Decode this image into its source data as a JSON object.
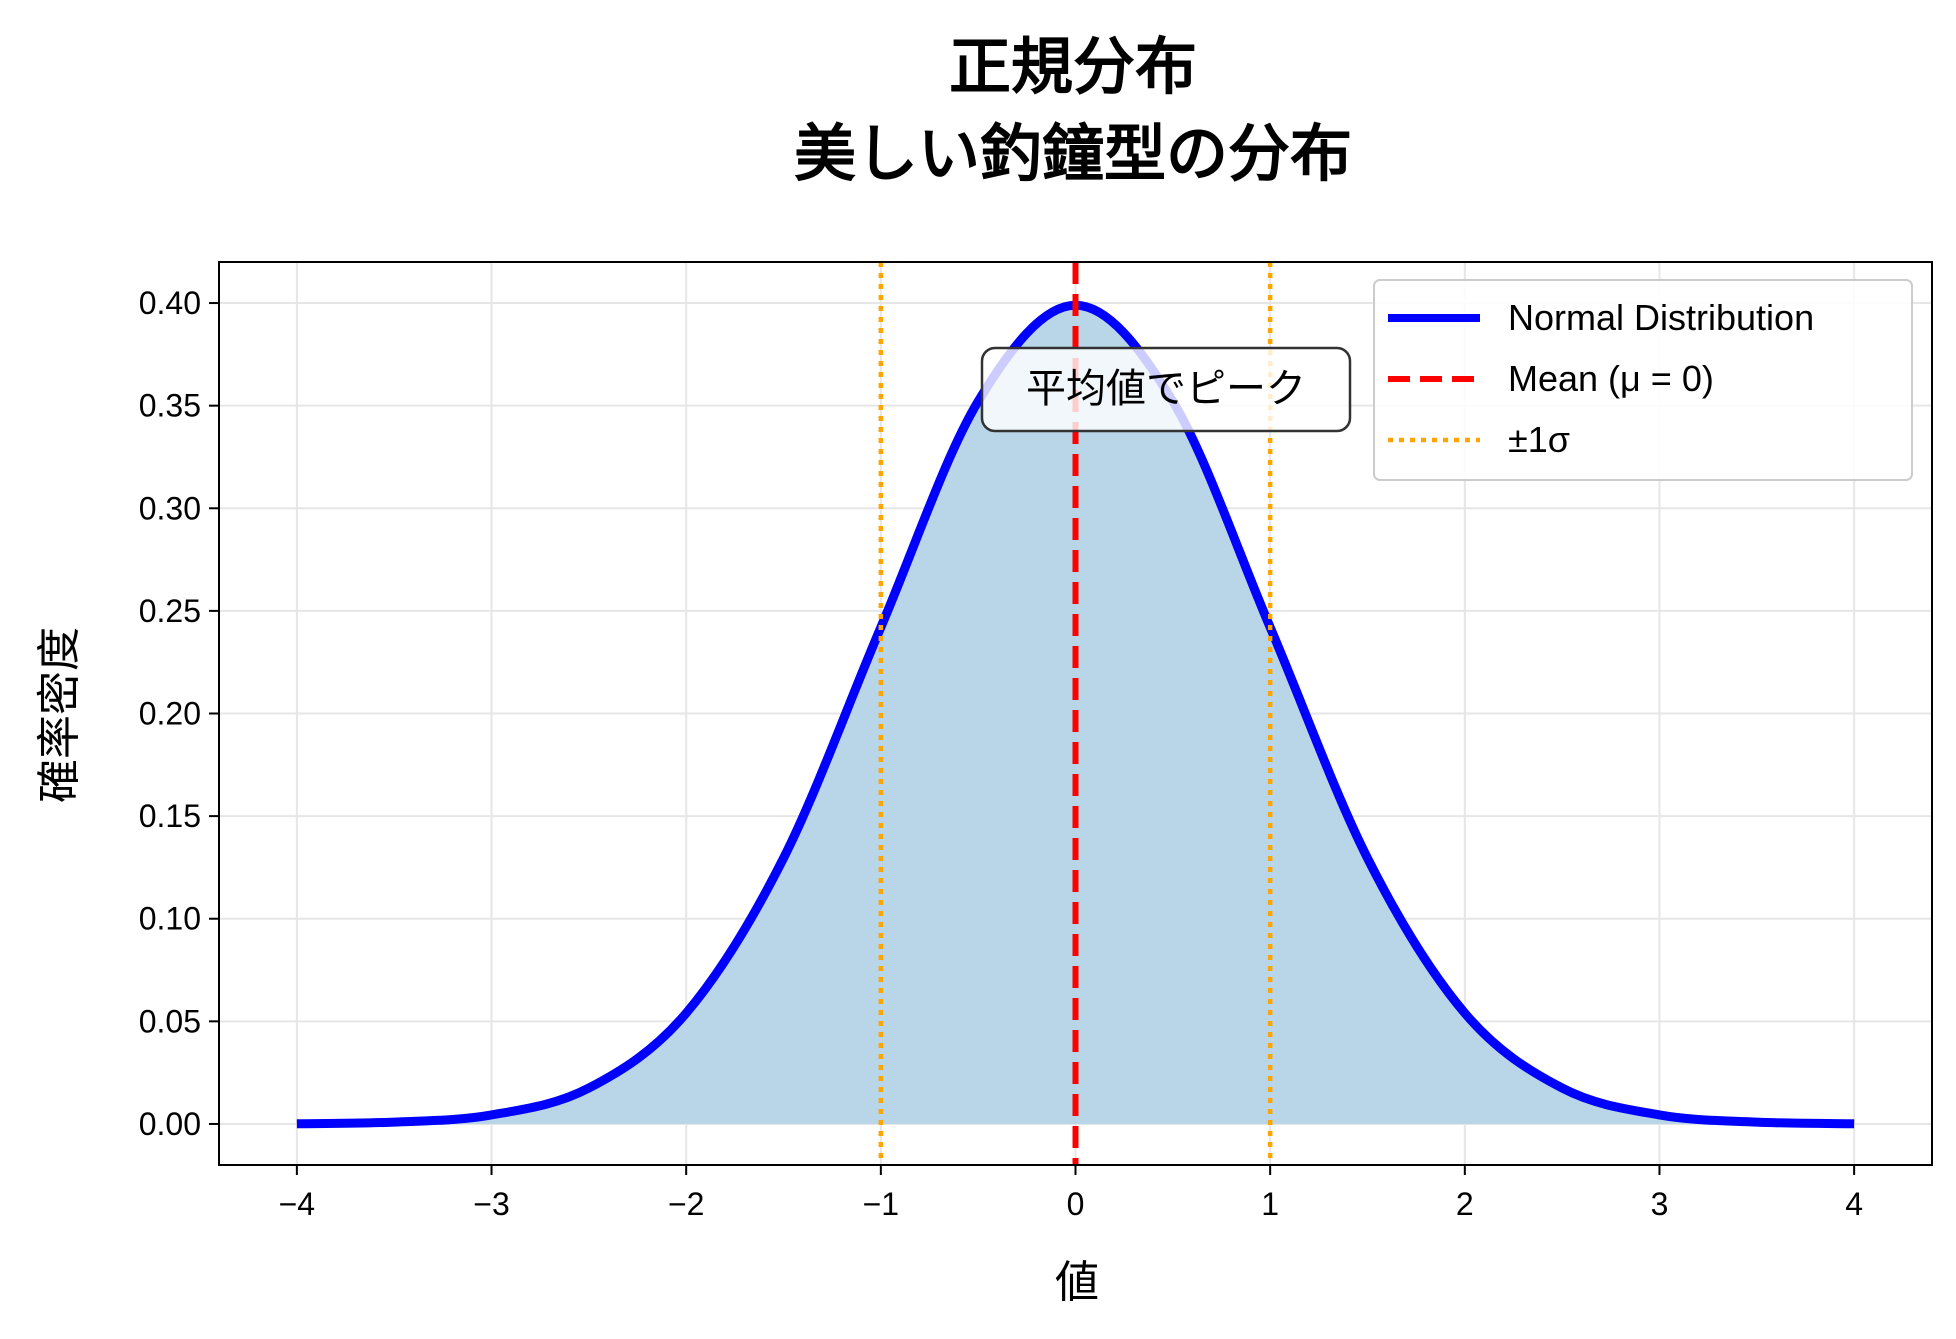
{
  "chart_data": {
    "type": "line",
    "title_line1": "正規分布",
    "title_line2": "美しい釣鐘型の分布",
    "xlabel": "値",
    "ylabel": "確率密度",
    "xlim": [
      -4.4,
      4.4
    ],
    "ylim": [
      -0.02,
      0.42
    ],
    "x_ticks": [
      -4,
      -3,
      -2,
      -1,
      0,
      1,
      2,
      3,
      4
    ],
    "x_tick_labels": [
      "−4",
      "−3",
      "−2",
      "−1",
      "0",
      "1",
      "2",
      "3",
      "4"
    ],
    "y_ticks": [
      0.0,
      0.05,
      0.1,
      0.15,
      0.2,
      0.25,
      0.3,
      0.35,
      0.4
    ],
    "y_tick_labels": [
      "0.00",
      "0.05",
      "0.10",
      "0.15",
      "0.20",
      "0.25",
      "0.30",
      "0.35",
      "0.40"
    ],
    "grid": true,
    "legend_position": "upper right",
    "series": [
      {
        "name": "Normal Distribution",
        "color": "#0000ff",
        "style": "solid",
        "x": [
          -4.0,
          -3.5,
          -3.0,
          -2.5,
          -2.0,
          -1.5,
          -1.0,
          -0.5,
          0.0,
          0.5,
          1.0,
          1.5,
          2.0,
          2.5,
          3.0,
          3.5,
          4.0
        ],
        "y": [
          0.0001,
          0.0009,
          0.0044,
          0.0175,
          0.054,
          0.1295,
          0.242,
          0.3521,
          0.3989,
          0.3521,
          0.242,
          0.1295,
          0.054,
          0.0175,
          0.0044,
          0.0009,
          0.0001
        ],
        "fill_color": "#b9d5e8"
      },
      {
        "name": "Mean (μ = 0)",
        "color": "#ff0000",
        "style": "dashed",
        "x_value": 0
      },
      {
        "name": "±1σ",
        "color": "#ffa500",
        "style": "dotted",
        "x_values": [
          -1,
          1
        ]
      }
    ],
    "annotation": {
      "text": "平均値でピーク",
      "x": 0.5,
      "y": 0.36
    }
  }
}
